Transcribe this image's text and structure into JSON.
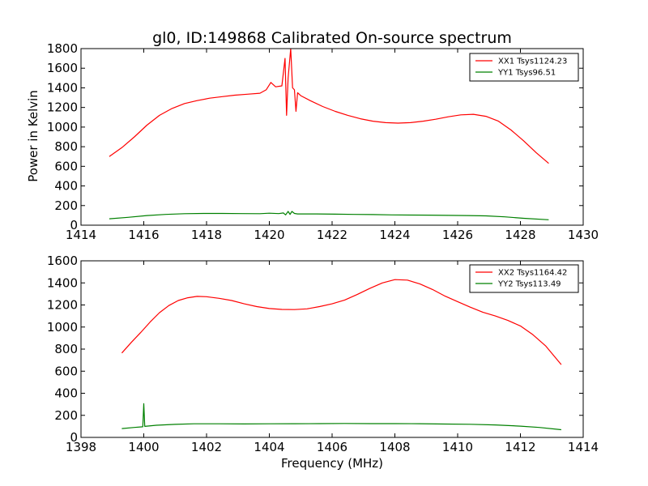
{
  "figure_title": "gl0, ID:149868 Calibrated On-source spectrum",
  "ylabel": "Power in Kelvin",
  "xlabel": "Frequency (MHz)",
  "colors": {
    "xx": "#ff0000",
    "yy": "#008000",
    "axes": "#000000",
    "background": "#ffffff"
  },
  "chart_data": [
    {
      "type": "line",
      "xlim": [
        1414,
        1430
      ],
      "ylim": [
        0,
        1800
      ],
      "xticks": [
        1414,
        1416,
        1418,
        1420,
        1422,
        1424,
        1426,
        1428,
        1430
      ],
      "yticks": [
        0,
        200,
        400,
        600,
        800,
        1000,
        1200,
        1400,
        1600,
        1800
      ],
      "legend_position": "top-right",
      "series": [
        {
          "name": "XX1 Tsys1124.23",
          "color": "#ff0000",
          "points": [
            [
              1414.9,
              700
            ],
            [
              1415.3,
              790
            ],
            [
              1415.7,
              900
            ],
            [
              1416.1,
              1020
            ],
            [
              1416.5,
              1120
            ],
            [
              1416.9,
              1190
            ],
            [
              1417.3,
              1240
            ],
            [
              1417.7,
              1270
            ],
            [
              1418.1,
              1295
            ],
            [
              1418.5,
              1310
            ],
            [
              1418.9,
              1325
            ],
            [
              1419.3,
              1335
            ],
            [
              1419.7,
              1345
            ],
            [
              1419.9,
              1380
            ],
            [
              1420.05,
              1455
            ],
            [
              1420.2,
              1410
            ],
            [
              1420.4,
              1420
            ],
            [
              1420.5,
              1700
            ],
            [
              1420.55,
              1120
            ],
            [
              1420.6,
              1500
            ],
            [
              1420.68,
              1800
            ],
            [
              1420.74,
              1400
            ],
            [
              1420.8,
              1380
            ],
            [
              1420.85,
              1160
            ],
            [
              1420.9,
              1350
            ],
            [
              1421.0,
              1320
            ],
            [
              1421.3,
              1270
            ],
            [
              1421.7,
              1210
            ],
            [
              1422.1,
              1160
            ],
            [
              1422.5,
              1120
            ],
            [
              1422.9,
              1085
            ],
            [
              1423.3,
              1060
            ],
            [
              1423.7,
              1045
            ],
            [
              1424.1,
              1040
            ],
            [
              1424.5,
              1045
            ],
            [
              1424.9,
              1060
            ],
            [
              1425.3,
              1080
            ],
            [
              1425.7,
              1105
            ],
            [
              1426.1,
              1125
            ],
            [
              1426.5,
              1130
            ],
            [
              1426.9,
              1110
            ],
            [
              1427.3,
              1060
            ],
            [
              1427.7,
              970
            ],
            [
              1428.1,
              860
            ],
            [
              1428.5,
              740
            ],
            [
              1428.9,
              630
            ]
          ]
        },
        {
          "name": "YY1 Tsys96.51",
          "color": "#008000",
          "points": [
            [
              1414.9,
              65
            ],
            [
              1415.5,
              80
            ],
            [
              1416.1,
              98
            ],
            [
              1416.7,
              110
            ],
            [
              1417.3,
              117
            ],
            [
              1417.9,
              120
            ],
            [
              1418.5,
              120
            ],
            [
              1419.1,
              118
            ],
            [
              1419.7,
              117
            ],
            [
              1420.0,
              122
            ],
            [
              1420.3,
              118
            ],
            [
              1420.45,
              125
            ],
            [
              1420.52,
              105
            ],
            [
              1420.6,
              140
            ],
            [
              1420.66,
              110
            ],
            [
              1420.72,
              140
            ],
            [
              1420.8,
              120
            ],
            [
              1420.9,
              115
            ],
            [
              1421.5,
              115
            ],
            [
              1422.1,
              112
            ],
            [
              1422.7,
              110
            ],
            [
              1423.3,
              108
            ],
            [
              1423.9,
              105
            ],
            [
              1424.5,
              103
            ],
            [
              1425.1,
              102
            ],
            [
              1425.7,
              100
            ],
            [
              1426.3,
              98
            ],
            [
              1426.9,
              95
            ],
            [
              1427.5,
              85
            ],
            [
              1428.1,
              70
            ],
            [
              1428.9,
              55
            ]
          ]
        }
      ]
    },
    {
      "type": "line",
      "xlim": [
        1398,
        1414
      ],
      "ylim": [
        0,
        1600
      ],
      "xticks": [
        1398,
        1400,
        1402,
        1404,
        1406,
        1408,
        1410,
        1412,
        1414
      ],
      "yticks": [
        0,
        200,
        400,
        600,
        800,
        1000,
        1200,
        1400,
        1600
      ],
      "legend_position": "top-right",
      "series": [
        {
          "name": "XX2 Tsys1164.42",
          "color": "#ff0000",
          "points": [
            [
              1399.3,
              765
            ],
            [
              1399.6,
              860
            ],
            [
              1399.9,
              950
            ],
            [
              1400.2,
              1045
            ],
            [
              1400.5,
              1130
            ],
            [
              1400.8,
              1195
            ],
            [
              1401.1,
              1240
            ],
            [
              1401.4,
              1265
            ],
            [
              1401.7,
              1278
            ],
            [
              1402.0,
              1275
            ],
            [
              1402.4,
              1260
            ],
            [
              1402.8,
              1240
            ],
            [
              1403.2,
              1210
            ],
            [
              1403.6,
              1185
            ],
            [
              1404.0,
              1168
            ],
            [
              1404.4,
              1160
            ],
            [
              1404.8,
              1158
            ],
            [
              1405.2,
              1165
            ],
            [
              1405.6,
              1185
            ],
            [
              1406.0,
              1210
            ],
            [
              1406.4,
              1245
            ],
            [
              1406.8,
              1295
            ],
            [
              1407.2,
              1350
            ],
            [
              1407.6,
              1400
            ],
            [
              1408.0,
              1430
            ],
            [
              1408.4,
              1425
            ],
            [
              1408.8,
              1390
            ],
            [
              1409.2,
              1340
            ],
            [
              1409.6,
              1280
            ],
            [
              1410.0,
              1230
            ],
            [
              1410.4,
              1180
            ],
            [
              1410.8,
              1135
            ],
            [
              1411.2,
              1100
            ],
            [
              1411.6,
              1060
            ],
            [
              1412.0,
              1010
            ],
            [
              1412.4,
              930
            ],
            [
              1412.8,
              830
            ],
            [
              1413.3,
              660
            ]
          ]
        },
        {
          "name": "YY2 Tsys113.49",
          "color": "#008000",
          "points": [
            [
              1399.3,
              80
            ],
            [
              1399.7,
              90
            ],
            [
              1399.97,
              96
            ],
            [
              1400.0,
              305
            ],
            [
              1400.03,
              100
            ],
            [
              1400.4,
              110
            ],
            [
              1401.0,
              118
            ],
            [
              1401.6,
              123
            ],
            [
              1402.4,
              123
            ],
            [
              1403.2,
              122
            ],
            [
              1404.0,
              123
            ],
            [
              1404.8,
              124
            ],
            [
              1405.6,
              125
            ],
            [
              1406.4,
              126
            ],
            [
              1407.2,
              125
            ],
            [
              1408.0,
              125
            ],
            [
              1408.8,
              124
            ],
            [
              1409.6,
              121
            ],
            [
              1410.4,
              119
            ],
            [
              1411.2,
              113
            ],
            [
              1412.0,
              102
            ],
            [
              1412.6,
              90
            ],
            [
              1413.3,
              70
            ]
          ]
        }
      ]
    }
  ]
}
